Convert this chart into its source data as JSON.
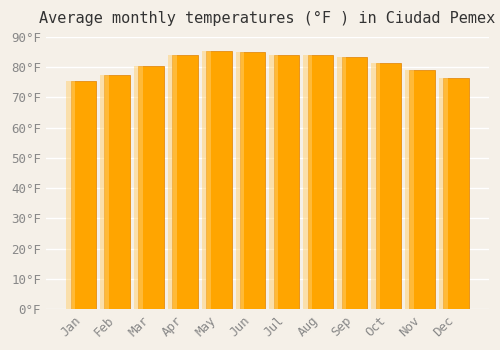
{
  "title": "Average monthly temperatures (°F ) in Ciudad Pemex",
  "months": [
    "Jan",
    "Feb",
    "Mar",
    "Apr",
    "May",
    "Jun",
    "Jul",
    "Aug",
    "Sep",
    "Oct",
    "Nov",
    "Dec"
  ],
  "values": [
    75.5,
    77.5,
    80.5,
    84.0,
    85.5,
    85.0,
    84.0,
    84.0,
    83.5,
    81.5,
    79.0,
    76.5
  ],
  "bar_color": "#FFA500",
  "bar_edge_color": "#E08000",
  "background_color": "#F5F0E8",
  "grid_color": "#FFFFFF",
  "ylim": [
    0,
    90
  ],
  "yticks": [
    0,
    10,
    20,
    30,
    40,
    50,
    60,
    70,
    80,
    90
  ],
  "title_fontsize": 11,
  "tick_fontsize": 9,
  "bar_width": 0.75
}
